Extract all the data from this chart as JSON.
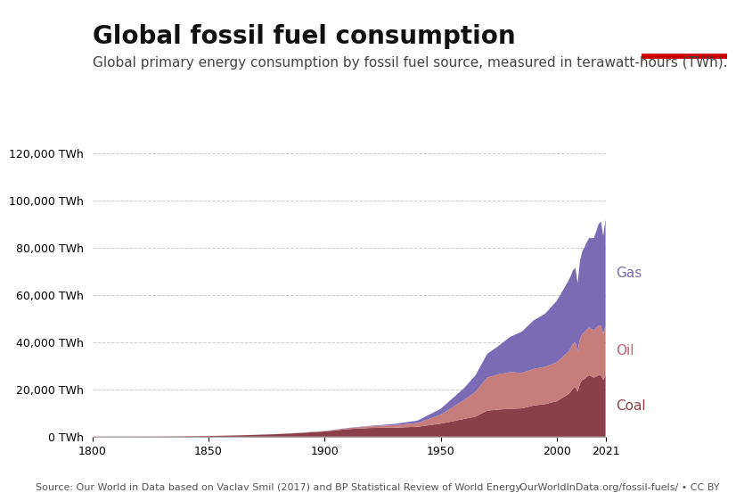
{
  "title": "Global fossil fuel consumption",
  "subtitle": "Global primary energy consumption by fossil fuel source, measured in terawatt-hours (TWh).",
  "source_left": "Source: Our World in Data based on Vaclav Smil (2017) and BP Statistical Review of World Energy",
  "source_right": "OurWorldInData.org/fossil-fuels/ • CC BY",
  "ylabel": "",
  "background_color": "#ffffff",
  "title_fontsize": 20,
  "subtitle_fontsize": 11,
  "color_coal": "#8B4049",
  "color_oil": "#C87D7D",
  "color_gas": "#7B6BB5",
  "label_coal": "Coal",
  "label_oil": "Oil",
  "label_gas": "Gas",
  "years": [
    1800,
    1810,
    1820,
    1830,
    1840,
    1850,
    1860,
    1870,
    1880,
    1890,
    1900,
    1910,
    1920,
    1930,
    1940,
    1950,
    1960,
    1965,
    1970,
    1975,
    1980,
    1985,
    1990,
    1995,
    2000,
    2005,
    2006,
    2007,
    2008,
    2009,
    2010,
    2011,
    2012,
    2013,
    2014,
    2015,
    2016,
    2017,
    2018,
    2019,
    2020,
    2021
  ],
  "coal": [
    98,
    105,
    115,
    130,
    200,
    300,
    500,
    750,
    1100,
    1600,
    2200,
    3200,
    3700,
    3800,
    4200,
    5500,
    7500,
    8500,
    11000,
    11500,
    11800,
    12000,
    13200,
    13800,
    15000,
    18000,
    19000,
    20500,
    21000,
    19000,
    22500,
    24000,
    24500,
    25500,
    26000,
    25500,
    25000,
    25500,
    26000,
    25900,
    24000,
    26000
  ],
  "oil": [
    0,
    0,
    0,
    0,
    0,
    5,
    10,
    20,
    40,
    80,
    150,
    400,
    700,
    1100,
    1600,
    3800,
    8000,
    10500,
    14000,
    15000,
    15500,
    15000,
    15500,
    15800,
    16500,
    18000,
    18500,
    19000,
    19000,
    17000,
    19000,
    19500,
    19800,
    20000,
    20200,
    20000,
    20200,
    20500,
    21000,
    21200,
    19500,
    21000
  ],
  "gas": [
    0,
    0,
    0,
    0,
    0,
    0,
    0,
    5,
    10,
    20,
    50,
    100,
    200,
    500,
    1000,
    2500,
    5000,
    7000,
    10000,
    12000,
    15000,
    17500,
    20500,
    22500,
    26000,
    30000,
    30500,
    31000,
    31500,
    29000,
    33000,
    35000,
    36000,
    37000,
    38000,
    38500,
    39000,
    41000,
    43000,
    44000,
    41500,
    45000
  ],
  "ylim": [
    0,
    145000
  ],
  "yticks": [
    0,
    20000,
    40000,
    60000,
    80000,
    100000,
    120000
  ],
  "xlim": [
    1800,
    2021
  ]
}
